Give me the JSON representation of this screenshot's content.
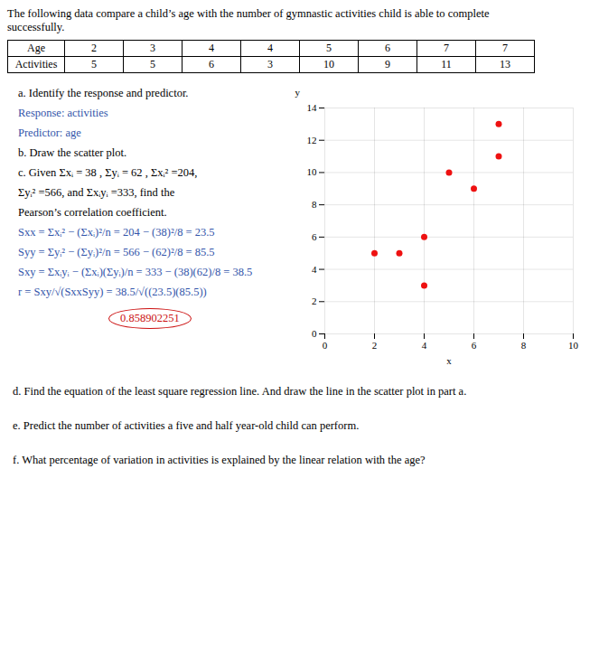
{
  "intro": [
    "The following data compare a child’s age with the number of gymnastic activities child is able to complete",
    "successfully."
  ],
  "table": {
    "headers": [
      "Age",
      "2",
      "3",
      "4",
      "4",
      "5",
      "6",
      "7",
      "7"
    ],
    "rows": [
      [
        "Activities",
        "5",
        "5",
        "6",
        "3",
        "10",
        "9",
        "11",
        "13"
      ]
    ]
  },
  "left_text": [
    {
      "text": "a.   Identify the response and predictor.",
      "color": "#000000"
    },
    {
      "text": "Response: activities",
      "color": "#3355aa"
    },
    {
      "text": "Predictor: age",
      "color": "#3355aa"
    },
    {
      "text": "b.   Draw the scatter plot.",
      "color": "#000000"
    },
    {
      "text": "c.   Given Σxᵢ = 38 , Σyᵢ = 62 , Σxᵢ² =204,",
      "color": "#000000"
    },
    {
      "text": "Σyᵢ² =566, and Σxᵢyᵢ =333, find the",
      "color": "#000000"
    },
    {
      "text": "Pearson’s correlation coefficient.",
      "color": "#000000"
    },
    {
      "text": "Sxx = Σxᵢ² − (Σxᵢ)²/n = 204 − (38)²/8 = 23.5",
      "color": "#3355aa"
    },
    {
      "text": "Syy = Σyᵢ² − (Σyᵢ)²/n = 566 − (62)²/8 = 85.5",
      "color": "#3355aa"
    },
    {
      "text": "Sxy = Σxᵢyᵢ − (Σxᵢ)(Σyᵢ)/n = 333 − (38)(62)/8 = 38.5",
      "color": "#3355aa"
    },
    {
      "text": "r = Sxy/√(SxxSyy) = 38.5/√((23.5)(85.5))",
      "color": "#3355aa"
    }
  ],
  "answer": {
    "text": "0.858902251",
    "color": "#cc1111"
  },
  "below_text": [
    {
      "text": "d.   Find the equation of the least square regression line. And draw the line in the scatter plot in part a.",
      "color": "#000000"
    },
    {
      "text": "e.   Predict the number of activities a five and half year-old child can perform.",
      "color": "#000000"
    },
    {
      "text": "f.   What percentage of variation in activities is explained by the linear relation with the age?",
      "color": "#000000"
    }
  ],
  "chart_data": {
    "type": "scatter",
    "x": [
      2,
      3,
      4,
      4,
      5,
      6,
      7,
      7
    ],
    "values": [
      5,
      5,
      6,
      3,
      10,
      9,
      11,
      13
    ],
    "color": "#ee1111",
    "xlabel": "x",
    "ylabel": "y",
    "xlim": [
      0,
      10
    ],
    "ylim": [
      0,
      14
    ],
    "xticks": [
      0,
      2,
      4,
      6,
      8,
      10
    ],
    "yticks": [
      0,
      2,
      4,
      6,
      8,
      10,
      12,
      14
    ],
    "grid": true
  }
}
